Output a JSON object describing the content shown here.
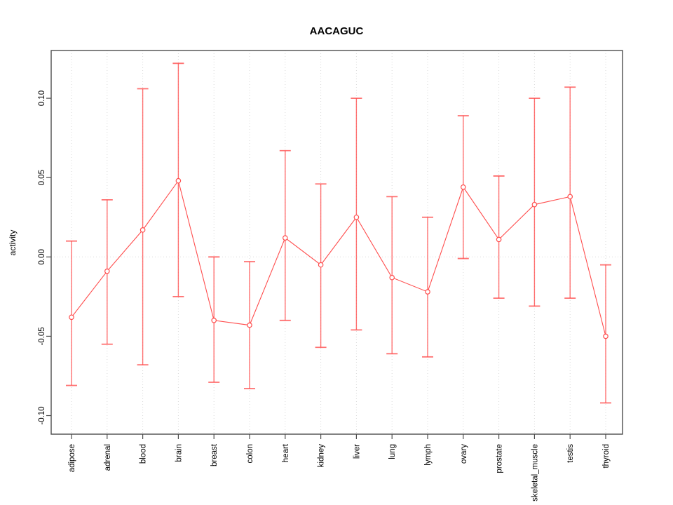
{
  "title": "AACAGUC",
  "colors": {
    "line": "#ff4d4d",
    "grid": "#d9d9d9",
    "zero_line": "#dcdcdc",
    "frame": "#4d4d4d",
    "text": "#000000"
  },
  "chart_data": {
    "type": "line",
    "title": "AACAGUC",
    "xlabel": "",
    "ylabel": "activity",
    "ylim": [
      -0.1117,
      0.1301
    ],
    "grid": "dotted vertical gridline per category, dotted horizontal line at 0",
    "legend": "none",
    "marker": "open-circle",
    "ytick_values": [
      -0.1,
      -0.05,
      0.0,
      0.05,
      0.1
    ],
    "ytick_labels": [
      "-0.10",
      "-0.05",
      "0.00",
      "0.05",
      "0.10"
    ],
    "categories": [
      "adipose",
      "adrenal",
      "blood",
      "brain",
      "breast",
      "colon",
      "heart",
      "kidney",
      "liver",
      "lung",
      "lymph",
      "ovary",
      "prostate",
      "skeletal_muscle",
      "testis",
      "thyroid"
    ],
    "series": [
      {
        "name": "activity",
        "values": [
          -0.038,
          -0.009,
          0.017,
          0.048,
          -0.04,
          -0.043,
          0.012,
          -0.005,
          0.025,
          -0.013,
          -0.022,
          0.044,
          0.011,
          0.033,
          0.038,
          -0.05
        ],
        "upper": [
          0.01,
          0.036,
          0.106,
          0.122,
          0.0,
          -0.003,
          0.067,
          0.046,
          0.1,
          0.038,
          0.025,
          0.089,
          0.051,
          0.1,
          0.107,
          -0.005
        ],
        "lower": [
          -0.081,
          -0.055,
          -0.068,
          -0.025,
          -0.079,
          -0.083,
          -0.04,
          -0.057,
          -0.046,
          -0.061,
          -0.063,
          -0.001,
          -0.026,
          -0.031,
          -0.026,
          -0.092
        ]
      }
    ]
  }
}
